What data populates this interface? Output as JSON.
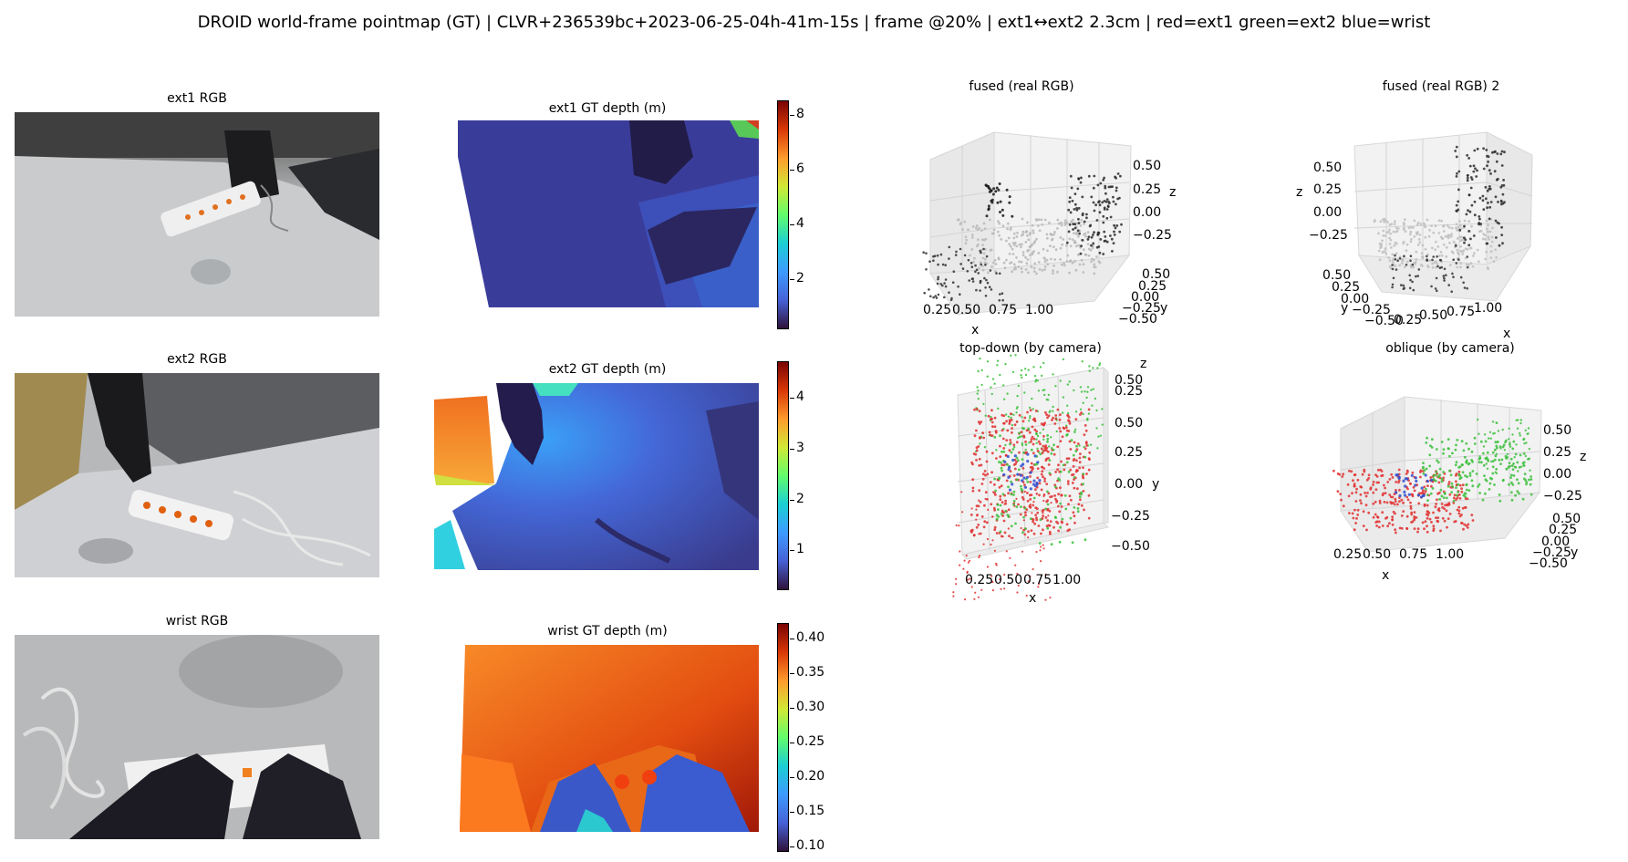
{
  "suptitle": "DROID world-frame pointmap (GT) | CLVR+236539bc+2023-06-25-04h-41m-15s | frame @20% | ext1↔ext2 2.3cm | red=ext1 green=ext2 blue=wrist",
  "panels": {
    "ext1_rgb": "ext1 RGB",
    "ext1_depth": "ext1 GT depth (m)",
    "ext2_rgb": "ext2 RGB",
    "ext2_depth": "ext2 GT depth (m)",
    "wrist_rgb": "wrist RGB",
    "wrist_depth": "wrist GT depth (m)",
    "fused1": "fused (real RGB)",
    "fused2": "fused (real RGB) 2",
    "topdown": "top-down (by camera)",
    "oblique": "oblique (by camera)"
  },
  "colorbars": {
    "ext1": [
      "8",
      "6",
      "4",
      "2"
    ],
    "ext2": [
      "4",
      "3",
      "2",
      "1"
    ],
    "wrist": [
      "0.40",
      "0.35",
      "0.30",
      "0.25",
      "0.20",
      "0.15",
      "0.10"
    ]
  },
  "colors": {
    "ext1": "#e03030",
    "ext2": "#3cc03c",
    "wrist": "#3050d0"
  },
  "chart_data": [
    {
      "type": "scatter",
      "title": "fused (real RGB)",
      "xlabel": "x",
      "ylabel": "y",
      "zlabel": "z",
      "x_ticks": [
        "0.25",
        "0.50",
        "0.75",
        "1.00"
      ],
      "y_ticks": [
        "0.50",
        "0.25",
        "0.00",
        "−0.25",
        "−0.50"
      ],
      "z_ticks": [
        "0.50",
        "0.25",
        "0.00",
        "−0.25"
      ]
    },
    {
      "type": "scatter",
      "title": "fused (real RGB) 2",
      "xlabel": "x",
      "ylabel": "y",
      "zlabel": "z",
      "x_ticks": [
        "0.25",
        "0.50",
        "0.75",
        "1.00"
      ],
      "y_ticks": [
        "0.50",
        "0.25",
        "0.00",
        "−0.25",
        "−0.50"
      ],
      "z_ticks": [
        "0.50",
        "0.25",
        "0.00",
        "−0.25"
      ]
    },
    {
      "type": "scatter",
      "title": "top-down (by camera)",
      "xlabel": "x",
      "ylabel": "y",
      "zlabel": "z",
      "x_ticks": [
        "0.25",
        "0.50",
        "0.75",
        "1.00"
      ],
      "y_ticks": [
        "0.50",
        "0.25",
        "0.00",
        "−0.25",
        "−0.50"
      ],
      "z_ticks": [
        "0.50",
        "0.25"
      ],
      "series": [
        {
          "name": "ext1"
        },
        {
          "name": "ext2"
        },
        {
          "name": "wrist"
        }
      ]
    },
    {
      "type": "scatter",
      "title": "oblique (by camera)",
      "xlabel": "x",
      "ylabel": "y",
      "zlabel": "z",
      "x_ticks": [
        "0.25",
        "0.50",
        "0.75",
        "1.00"
      ],
      "y_ticks": [
        "0.50",
        "0.25",
        "0.00",
        "−0.25",
        "−0.50"
      ],
      "z_ticks": [
        "0.50",
        "0.25",
        "0.00",
        "−0.25"
      ],
      "series": [
        {
          "name": "ext1"
        },
        {
          "name": "ext2"
        },
        {
          "name": "wrist"
        }
      ]
    }
  ]
}
